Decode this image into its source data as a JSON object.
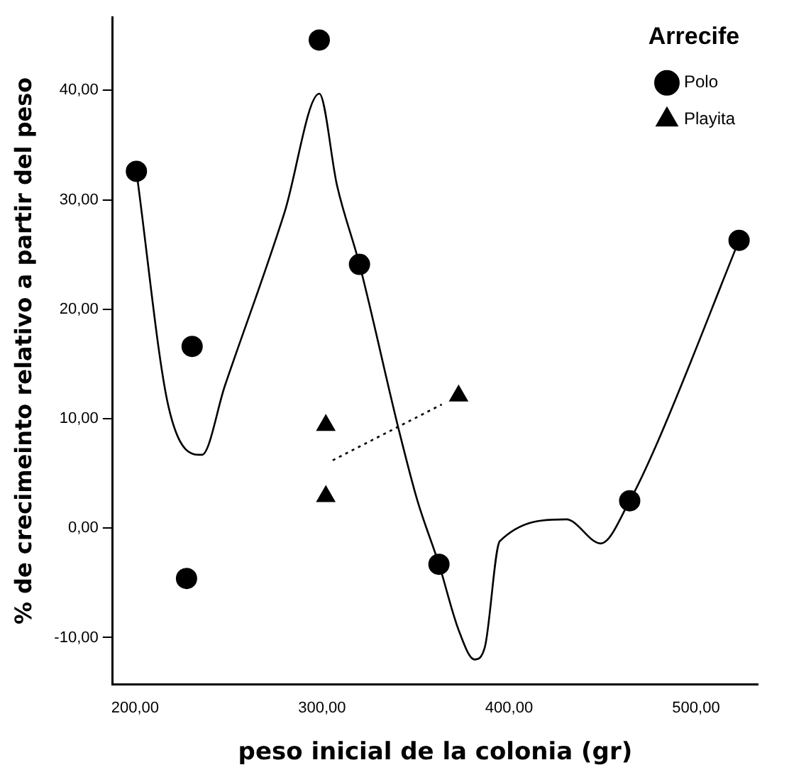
{
  "chart_data": {
    "type": "scatter",
    "xlabel": "peso inicial de la colonia (gr)",
    "ylabel": "% de crecimeinto relativo a partir del peso",
    "legend_title": "Arrecife",
    "legend": "top right",
    "grid": false,
    "xlim": [
      188,
      533
    ],
    "xticks": [
      {
        "value": 200,
        "label": "200,00"
      },
      {
        "value": 300,
        "label": "300,00"
      },
      {
        "value": 400,
        "label": "400,00"
      },
      {
        "value": 500,
        "label": "500,00"
      }
    ],
    "ylim": [
      -14.3,
      46.7
    ],
    "yticks": [
      {
        "value": -10,
        "label": "-10,00"
      },
      {
        "value": 0,
        "label": "0,00"
      },
      {
        "value": 10,
        "label": "10,00"
      },
      {
        "value": 20,
        "label": "20,00"
      },
      {
        "value": 30,
        "label": "30,00"
      },
      {
        "value": 40,
        "label": "40,00"
      }
    ],
    "series": [
      {
        "name": "Polo",
        "marker": "circle",
        "color": "#000000",
        "x": [
          200.7,
          227.5,
          230.5,
          298.5,
          320,
          362.5,
          464.5,
          523
        ],
        "values": [
          32.6,
          -4.6,
          16.6,
          44.6,
          24.1,
          -3.3,
          2.5,
          26.3
        ]
      },
      {
        "name": "Playita",
        "marker": "triangle",
        "color": "#000000",
        "x": [
          302,
          302,
          373
        ],
        "values": [
          9.4,
          2.9,
          12.1
        ]
      },
      {
        "type": "line",
        "marker": "none",
        "line_style": "solid",
        "color": "#000000",
        "x": [
          200.7,
          218,
          235.7,
          248,
          280,
          298.5,
          308,
          320,
          341,
          351,
          362.5,
          373,
          381.5,
          387,
          395,
          430.6,
          449,
          464.5,
          479,
          523
        ],
        "values": [
          32.6,
          11,
          6.7,
          13,
          28.9,
          39.7,
          31.3,
          24.1,
          9,
          2.5,
          -3.3,
          -9.3,
          -12,
          -10.9,
          -1.2,
          0.8,
          -1.4,
          2.5,
          7.7,
          26.3
        ]
      },
      {
        "type": "line",
        "marker": "none",
        "line_style": "dotted",
        "color": "#000000",
        "x": [
          305.7,
          364
        ],
        "values": [
          6.2,
          11.3
        ]
      }
    ]
  }
}
